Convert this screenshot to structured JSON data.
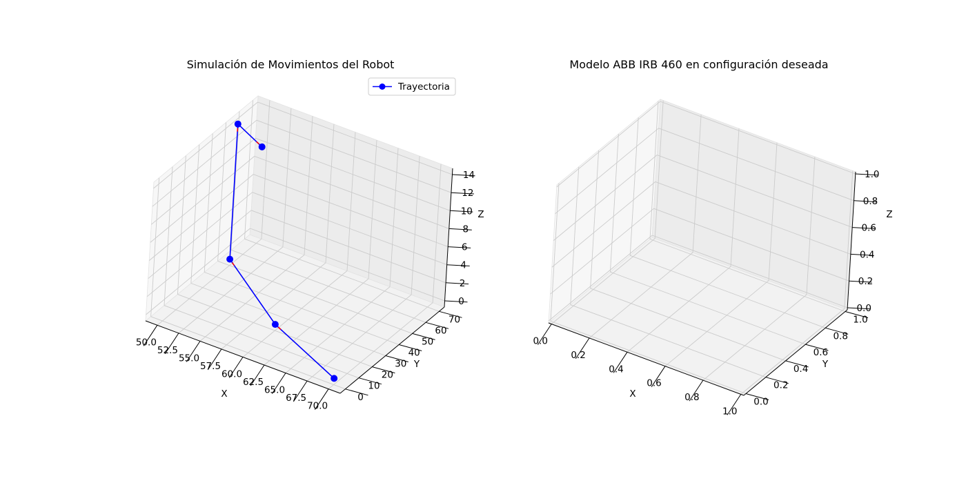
{
  "chart_data": [
    {
      "type": "line",
      "title": "Simulación de Movimientos del Robot",
      "xlabel": "X",
      "ylabel": "Y",
      "zlabel": "Z",
      "xticks": [
        "50.0",
        "52.5",
        "55.0",
        "57.5",
        "60.0",
        "62.5",
        "65.0",
        "67.5",
        "70.0"
      ],
      "yticks": [
        "0",
        "10",
        "20",
        "30",
        "40",
        "50",
        "60",
        "70"
      ],
      "zticks": [
        "0",
        "2",
        "4",
        "6",
        "8",
        "10",
        "12",
        "14"
      ],
      "legend": {
        "entries": [
          "Trayectoria"
        ],
        "placement": "upper-right"
      },
      "series": [
        {
          "name": "Trayectoria",
          "color": "#0000ff",
          "marker": "circle",
          "points": [
            {
              "x": 70.0,
              "y": 0.0,
              "z": 0.0
            },
            {
              "x": 60.0,
              "y": 20.0,
              "z": 0.0
            },
            {
              "x": 50.0,
              "y": 50.0,
              "z": 0.0
            },
            {
              "x": 50.0,
              "y": 50.0,
              "z": 15.0
            },
            {
              "x": 50.0,
              "y": 70.0,
              "z": 10.0
            }
          ]
        }
      ],
      "arrow_color": "#ff0000",
      "grid": true
    },
    {
      "type": "line",
      "title": "Modelo ABB IRB 460 en configuración deseada",
      "xlabel": "X",
      "ylabel": "Y",
      "zlabel": "Z",
      "xticks": [
        "0.0",
        "0.2",
        "0.4",
        "0.6",
        "0.8",
        "1.0"
      ],
      "yticks": [
        "0.0",
        "0.2",
        "0.4",
        "0.6",
        "0.8",
        "1.0"
      ],
      "zticks": [
        "0.0",
        "0.2",
        "0.4",
        "0.6",
        "0.8",
        "1.0"
      ],
      "series": [],
      "grid": true
    }
  ]
}
